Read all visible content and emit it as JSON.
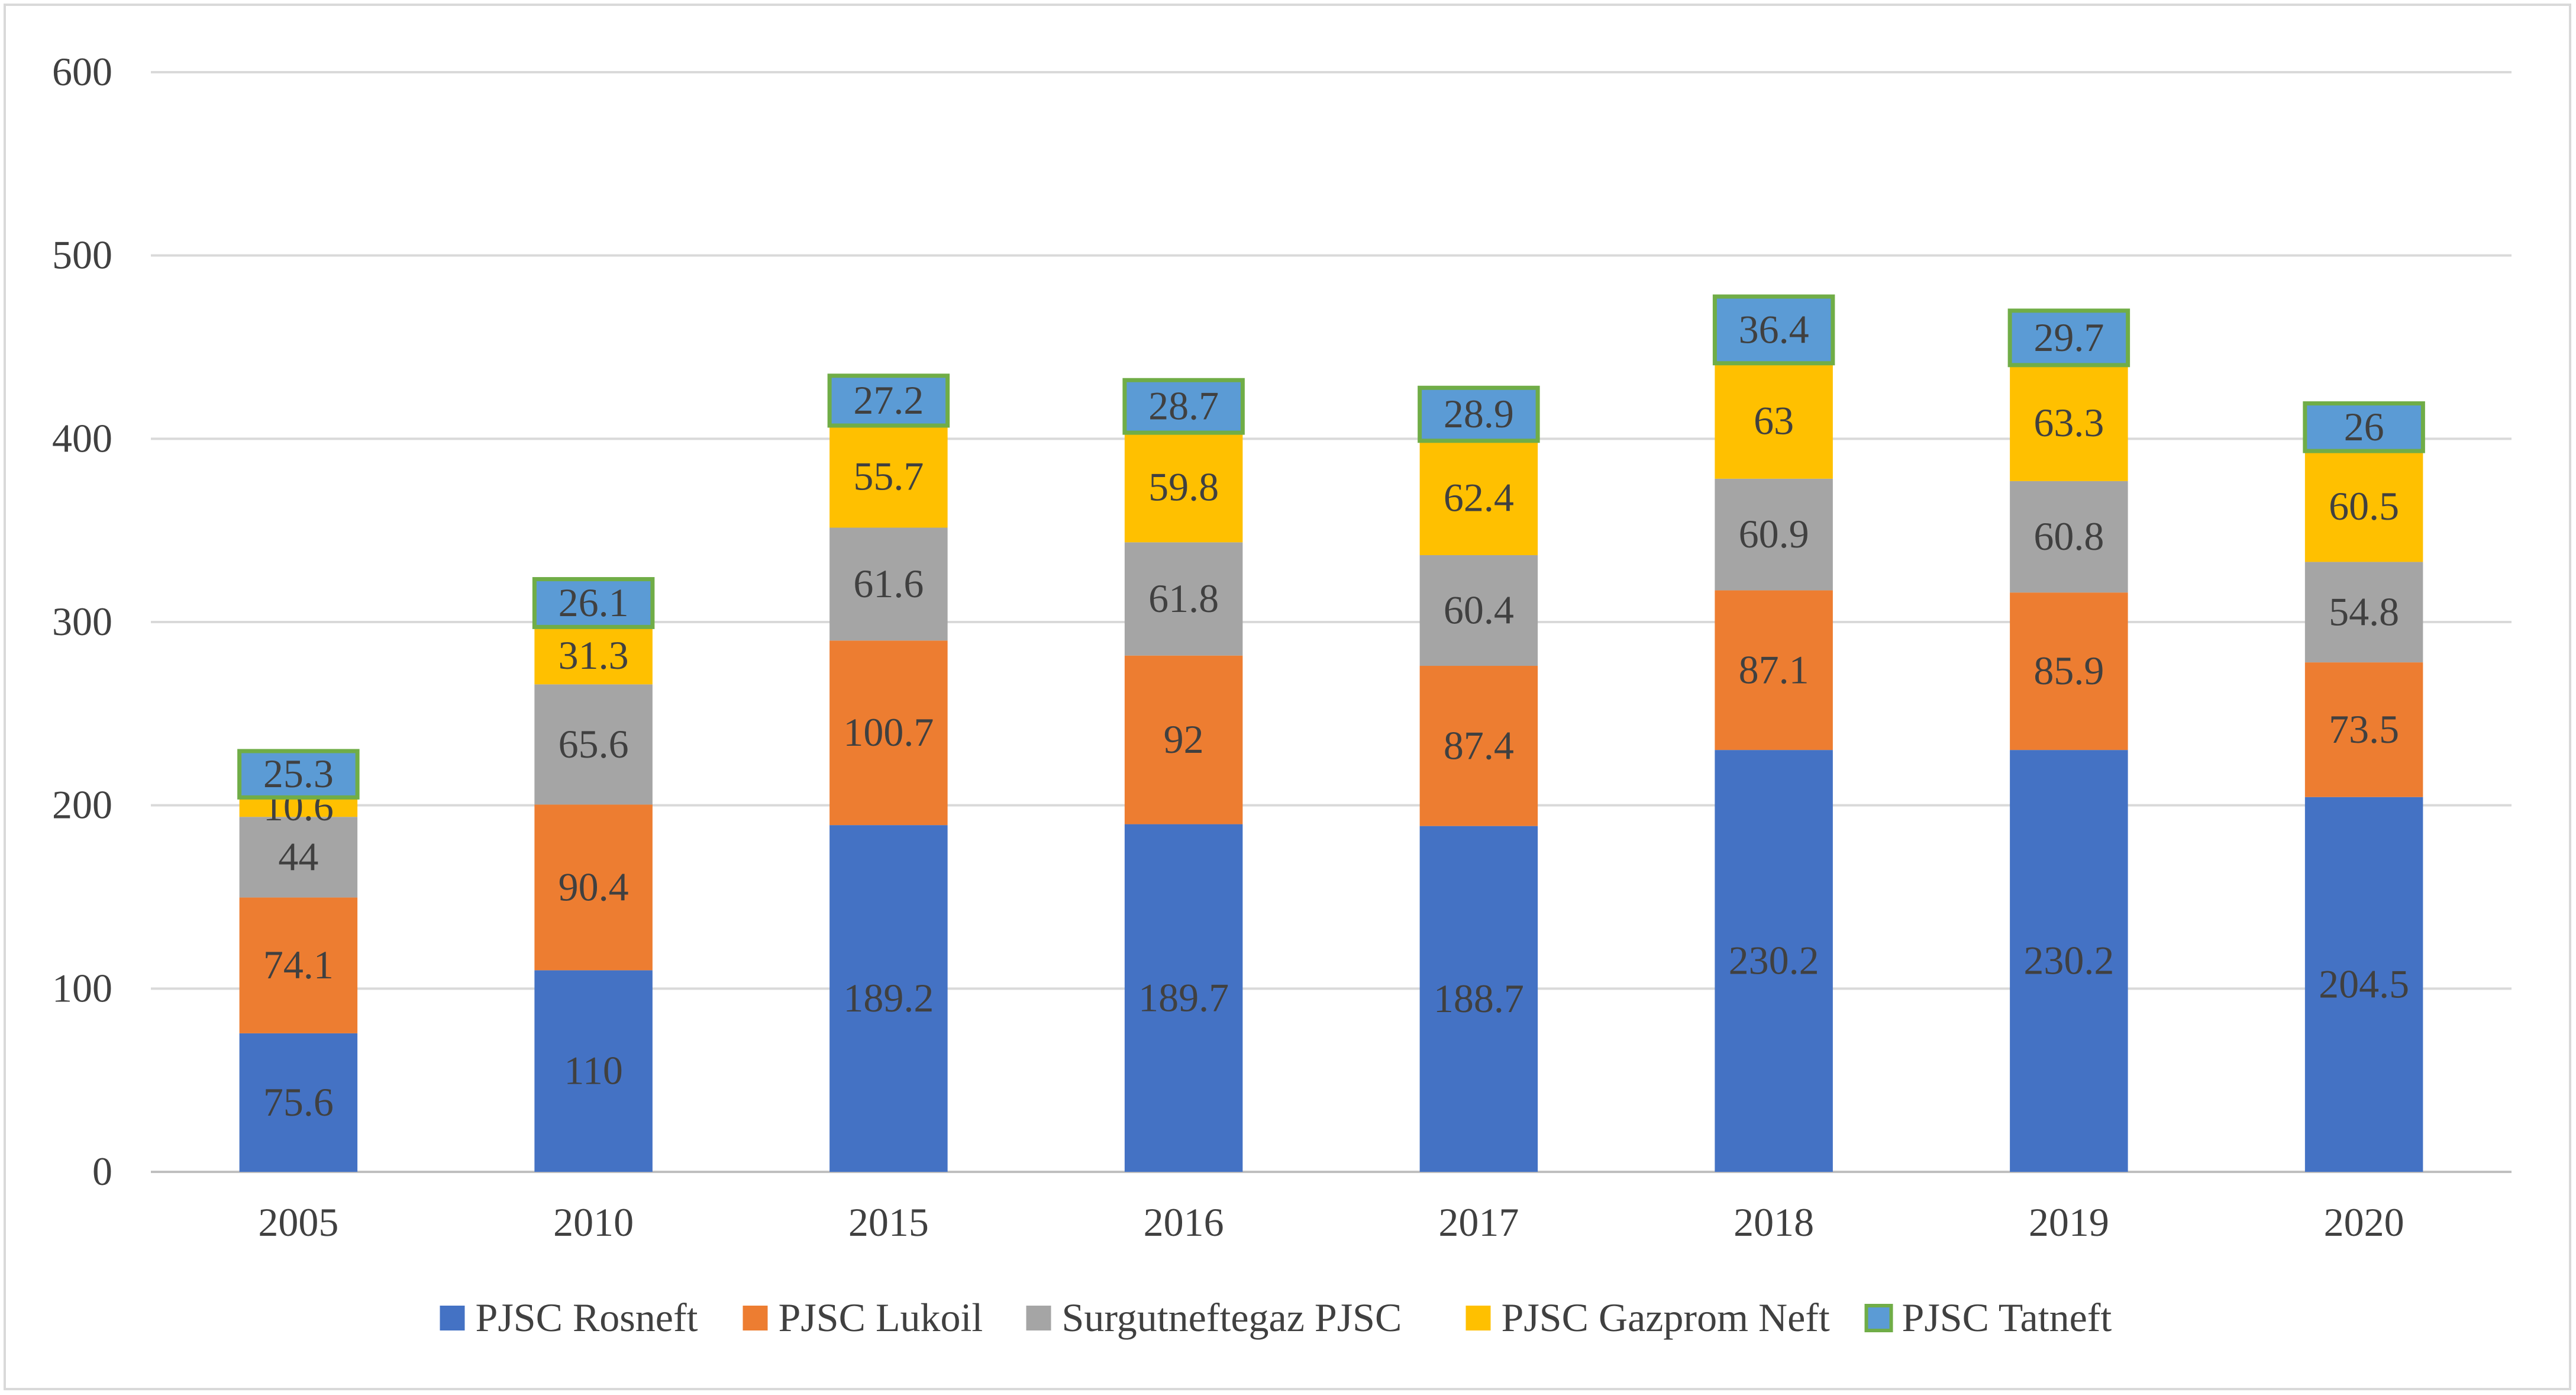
{
  "chart_data": {
    "type": "bar",
    "stacked": true,
    "categories": [
      "2005",
      "2010",
      "2015",
      "2016",
      "2017",
      "2018",
      "2019",
      "2020"
    ],
    "series": [
      {
        "name": "PJSC Rosneft",
        "color": "#4472C4",
        "values": [
          75.6,
          110,
          189.2,
          189.7,
          188.7,
          230.2,
          230.2,
          204.5
        ]
      },
      {
        "name": "PJSC Lukoil",
        "color": "#ED7D31",
        "values": [
          74.1,
          90.4,
          100.7,
          92,
          87.4,
          87.1,
          85.9,
          73.5
        ]
      },
      {
        "name": "Surgutneftegaz PJSC",
        "color": "#A5A5A5",
        "values": [
          44,
          65.6,
          61.6,
          61.8,
          60.4,
          60.9,
          60.8,
          54.8
        ]
      },
      {
        "name": "PJSC Gazprom Neft",
        "color": "#FFC000",
        "values": [
          10.6,
          31.3,
          55.7,
          59.8,
          62.4,
          63,
          63.3,
          60.5
        ]
      },
      {
        "name": "PJSC Tatneft",
        "color": "#5B9BD5",
        "border_color": "#70AD47",
        "values": [
          25.3,
          26.1,
          27.2,
          28.7,
          28.9,
          36.4,
          29.7,
          26
        ]
      }
    ],
    "data_labels": [
      [
        "75.6",
        "110",
        "189.2",
        "189.7",
        "188.7",
        "230.2",
        "230.2",
        "204.5"
      ],
      [
        "74.1",
        "90.4",
        "100.7",
        "92",
        "87.4",
        "87.1",
        "85.9",
        "73.5"
      ],
      [
        "44",
        "65.6",
        "61.6",
        "61.8",
        "60.4",
        "60.9",
        "60.8",
        "54.8"
      ],
      [
        "10.6",
        "31.3",
        "55.7",
        "59.8",
        "62.4",
        "63",
        "63.3",
        "60.5"
      ],
      [
        "25.3",
        "26.1",
        "27.2",
        "28.7",
        "28.9",
        "36.4",
        "29.7",
        "26"
      ]
    ],
    "y_ticks": [
      "0",
      "100",
      "200",
      "300",
      "400",
      "500",
      "600"
    ],
    "ylim": [
      0,
      600
    ],
    "grid": true,
    "legend_position": "bottom",
    "title": "",
    "xlabel": "",
    "ylabel": ""
  }
}
